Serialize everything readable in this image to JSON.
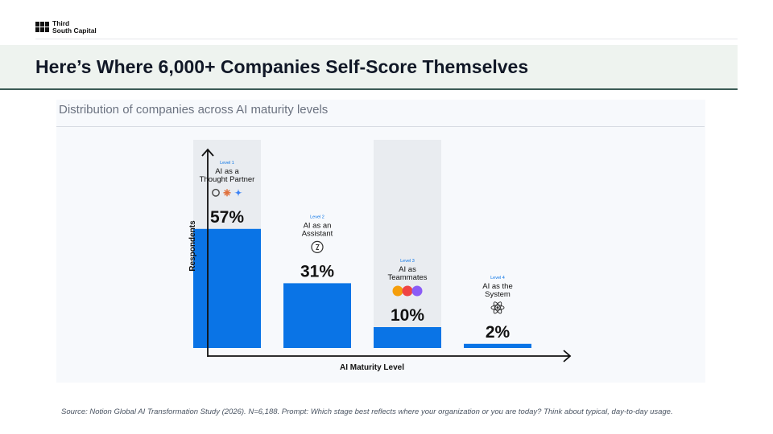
{
  "brand": {
    "name_line1": "Third",
    "name_line2": "South Capital"
  },
  "slide": {
    "title": "Here’s Where 6,000+ Companies Self-Score Themselves",
    "footnote": "Source: Notion Global AI Transformation Study (2026). N=6,188. Prompt: Which stage best reflects where your organization or you are today? Think about typical, day-to-day usage."
  },
  "colors": {
    "bar": "#0a74e6",
    "highlight_band": "#e9ecf0",
    "axis": "#111111",
    "accent_rule": "#3b5b55"
  },
  "chart_data": {
    "type": "bar",
    "title": "Distribution of companies across AI maturity levels",
    "xlabel": "AI Maturity Level",
    "ylabel": "Respondents",
    "ylim": [
      0,
      100
    ],
    "grid": false,
    "categories": [
      "Level 1",
      "Level 2",
      "Level 3",
      "Level 4"
    ],
    "values": [
      57,
      31,
      10,
      2
    ],
    "data_labels": [
      "57%",
      "31%",
      "10%",
      "2%"
    ],
    "names": [
      [
        "AI as a",
        "Thought Partner"
      ],
      [
        "AI as an",
        "Assistant"
      ],
      [
        "AI as",
        "Teammates"
      ],
      [
        "AI as the",
        "System"
      ]
    ],
    "highlighted": [
      true,
      false,
      true,
      false
    ],
    "icons": [
      [
        "openai-icon",
        "claude-icon",
        "gemini-icon"
      ],
      [
        "notion-ai-icon"
      ],
      [
        "agent-avatar-icons"
      ],
      [
        "react-atom-icon"
      ]
    ]
  }
}
